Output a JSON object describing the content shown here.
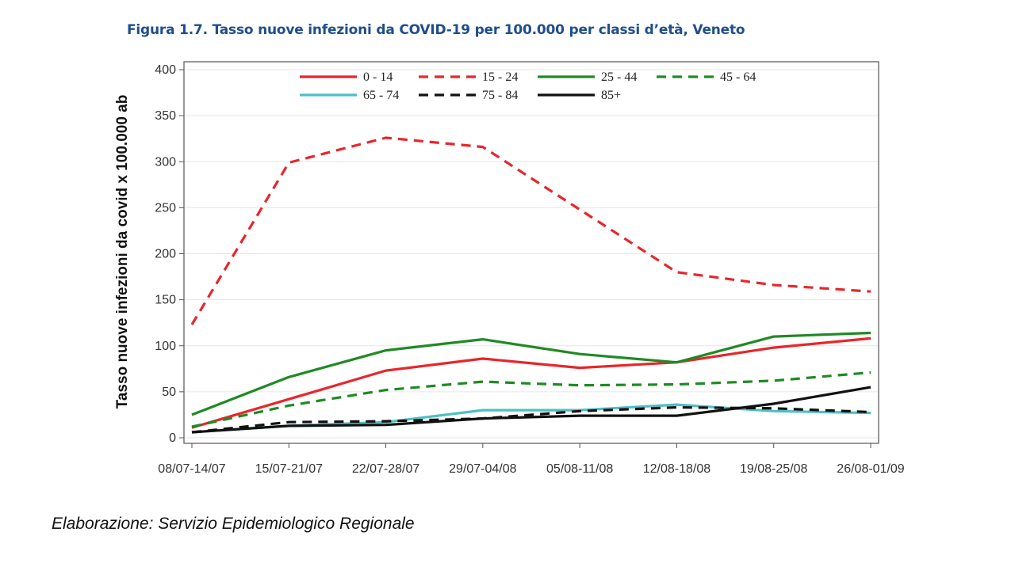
{
  "figure_title": "Figura 1.7. Tasso nuove infezioni da COVID-19 per 100.000 per classi d’età, Veneto",
  "caption": "Elaborazione: Servizio Epidemiologico Regionale",
  "chart_data": {
    "type": "line",
    "title": "",
    "xlabel": "",
    "ylabel": "Tasso nuove infezioni da covid x 100.000 ab",
    "ylim": [
      0,
      400
    ],
    "yticks": [
      0,
      50,
      100,
      150,
      200,
      250,
      300,
      350,
      400
    ],
    "grid": true,
    "legend_position": "top",
    "categories": [
      "08/07-14/07",
      "15/07-21/07",
      "22/07-28/07",
      "29/07-04/08",
      "05/08-11/08",
      "12/08-18/08",
      "19/08-25/08",
      "26/08-01/09"
    ],
    "series": [
      {
        "name": "0 - 14",
        "color": "#e8262b",
        "dash": false,
        "values": [
          11,
          42,
          73,
          86,
          76,
          82,
          98,
          108
        ]
      },
      {
        "name": "15 - 24",
        "color": "#e8262b",
        "dash": true,
        "values": [
          123,
          299,
          326,
          316,
          248,
          180,
          166,
          159
        ]
      },
      {
        "name": "25 - 44",
        "color": "#1f8a24",
        "dash": false,
        "values": [
          25,
          66,
          95,
          107,
          91,
          82,
          110,
          114
        ]
      },
      {
        "name": "45 - 64",
        "color": "#1f8a24",
        "dash": true,
        "values": [
          12,
          35,
          52,
          61,
          57,
          58,
          62,
          71
        ]
      },
      {
        "name": "65 - 74",
        "color": "#4cc0c3",
        "dash": false,
        "values": [
          6,
          13,
          17,
          30,
          30,
          36,
          29,
          27
        ]
      },
      {
        "name": "75 - 84",
        "color": "#111111",
        "dash": true,
        "values": [
          6,
          17,
          18,
          21,
          29,
          33,
          32,
          28
        ]
      },
      {
        "name": "85+",
        "color": "#111111",
        "dash": false,
        "values": [
          6,
          13,
          14,
          21,
          24,
          24,
          37,
          55
        ]
      }
    ]
  }
}
